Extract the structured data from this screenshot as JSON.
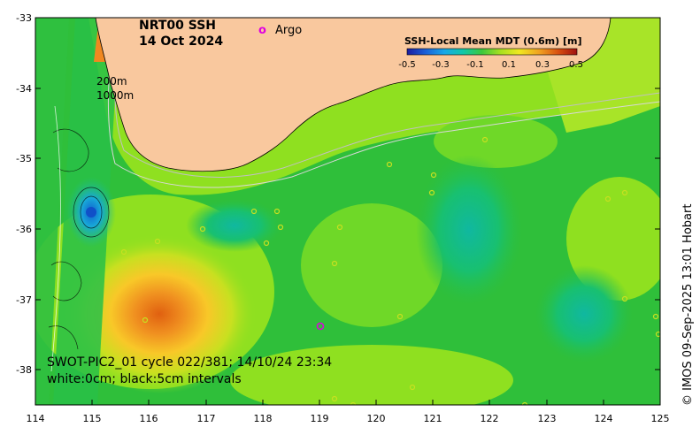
{
  "title": {
    "line1": "NRT00 SSH",
    "line2": "14 Oct 2024"
  },
  "argo": {
    "symbol": "o",
    "label": "Argo",
    "color": "#e000e0"
  },
  "isobaths": {
    "shallow": "200m",
    "deep": "1000m"
  },
  "colorbar": {
    "title": "SSH-Local Mean MDT (0.6m) [m]",
    "ticks": [
      "-0.5",
      "-0.3",
      "-0.1",
      "0.1",
      "0.3",
      "0.5"
    ],
    "range": [
      -0.5,
      0.5
    ],
    "colors": [
      "#1c1ca0",
      "#1a60d8",
      "#18a8e8",
      "#10c8a8",
      "#3cc83c",
      "#a8e020",
      "#f0e820",
      "#f0a020",
      "#d85010",
      "#a01010"
    ]
  },
  "swot": {
    "line1": "SWOT-PIC2_01 cycle 022/381; 14/10/24 23:34",
    "line2": "white:0cm; black:5cm intervals"
  },
  "credit": "© IMOS 09-Sep-2025 13:01 Hobart",
  "axes": {
    "x_ticks": [
      "114",
      "115",
      "116",
      "117",
      "118",
      "119",
      "120",
      "121",
      "122",
      "123",
      "124",
      "125"
    ],
    "y_ticks": [
      "-33",
      "-34",
      "-35",
      "-36",
      "-37",
      "-38"
    ],
    "lon_range": [
      114,
      125
    ],
    "lat_range": [
      -38.5,
      -33
    ]
  },
  "colors": {
    "land": "#f9c89e",
    "ocean_base": "#2fbf3a",
    "positive": "#8fe020",
    "high": "#f08820",
    "low": "#10c098"
  }
}
